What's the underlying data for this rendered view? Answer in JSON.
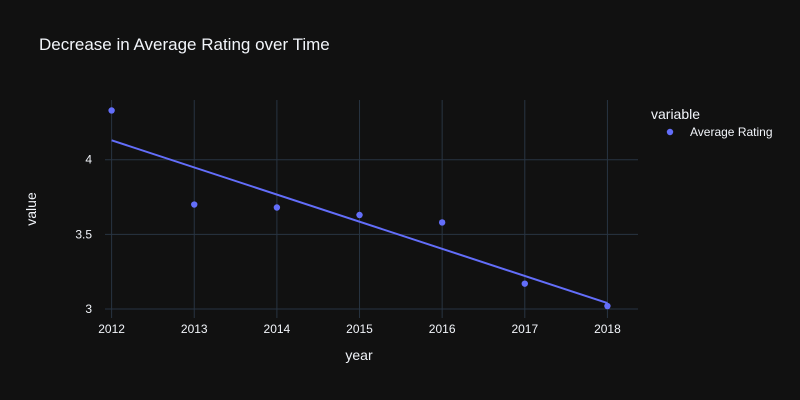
{
  "chart_data": {
    "type": "scatter",
    "title": "Decrease in Average Rating over Time",
    "xlabel": "year",
    "ylabel": "value",
    "x": [
      2012,
      2013,
      2014,
      2015,
      2016,
      2017,
      2018
    ],
    "series": [
      {
        "name": "Average Rating",
        "values": [
          4.33,
          3.7,
          3.68,
          3.63,
          3.58,
          3.17,
          3.02
        ],
        "color": "#636efa"
      }
    ],
    "trendline": {
      "x": [
        2012,
        2018
      ],
      "y": [
        4.13,
        3.04
      ],
      "color": "#636efa"
    },
    "xlim": [
      2011.92,
      2018.37
    ],
    "ylim": [
      2.94,
      4.4
    ],
    "xticks": [
      "2012",
      "2013",
      "2014",
      "2015",
      "2016",
      "2017",
      "2018"
    ],
    "yticks": [
      "3",
      "3.5",
      "4"
    ],
    "ytick_values": [
      3,
      3.5,
      4
    ],
    "grid": true,
    "legend": {
      "title": "variable",
      "placement": "top-right"
    }
  },
  "colors": {
    "background": "#111111",
    "grid": "#283442",
    "text": "#f2f5fa",
    "accent": "#636efa"
  }
}
